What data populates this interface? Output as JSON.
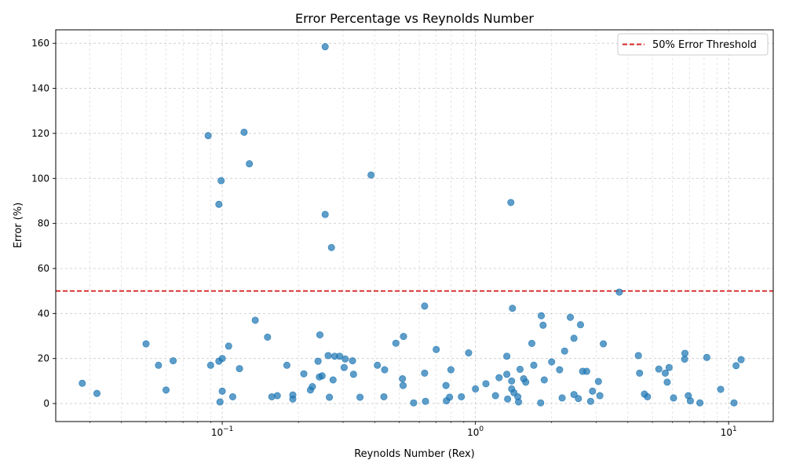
{
  "chart_data": {
    "type": "scatter",
    "title": "Error Percentage vs Reynolds Number",
    "xlabel": "Reynolds Number (Rex)",
    "ylabel": "Error (%)",
    "xscale": "log",
    "xlim": [
      0.022,
      15
    ],
    "ylim": [
      -8,
      166
    ],
    "x_ticks": [
      {
        "value": 0.1,
        "base": "10",
        "exp": "−1"
      },
      {
        "value": 1,
        "base": "10",
        "exp": "0"
      },
      {
        "value": 10,
        "base": "10",
        "exp": "1"
      }
    ],
    "y_ticks": [
      0,
      20,
      40,
      60,
      80,
      100,
      120,
      140,
      160
    ],
    "grid": true,
    "legend_position": "upper-right",
    "threshold": {
      "label": "50% Error Threshold",
      "value": 50,
      "color": "#d62728",
      "style": "dashed"
    },
    "marker_color": "#1f77b4",
    "points": [
      [
        0.028,
        9
      ],
      [
        0.032,
        4.5
      ],
      [
        0.05,
        26.5
      ],
      [
        0.056,
        17
      ],
      [
        0.06,
        6
      ],
      [
        0.064,
        19
      ],
      [
        0.088,
        119
      ],
      [
        0.09,
        17
      ],
      [
        0.097,
        88.5
      ],
      [
        0.097,
        18.8
      ],
      [
        0.098,
        0.7
      ],
      [
        0.099,
        99
      ],
      [
        0.1,
        20
      ],
      [
        0.1,
        5.5
      ],
      [
        0.106,
        25.5
      ],
      [
        0.11,
        3
      ],
      [
        0.117,
        15.5
      ],
      [
        0.122,
        120.5
      ],
      [
        0.128,
        106.5
      ],
      [
        0.135,
        37
      ],
      [
        0.151,
        29.5
      ],
      [
        0.157,
        3
      ],
      [
        0.165,
        3.5
      ],
      [
        0.18,
        17
      ],
      [
        0.19,
        2
      ],
      [
        0.19,
        3.8
      ],
      [
        0.21,
        13.2
      ],
      [
        0.223,
        6
      ],
      [
        0.227,
        7.5
      ],
      [
        0.239,
        18.8
      ],
      [
        0.242,
        11.8
      ],
      [
        0.243,
        30.5
      ],
      [
        0.248,
        12.3
      ],
      [
        0.255,
        84
      ],
      [
        0.255,
        158.5
      ],
      [
        0.262,
        21.3
      ],
      [
        0.265,
        2.8
      ],
      [
        0.27,
        69.3
      ],
      [
        0.274,
        10.5
      ],
      [
        0.278,
        21
      ],
      [
        0.291,
        21
      ],
      [
        0.303,
        16
      ],
      [
        0.306,
        19.8
      ],
      [
        0.327,
        19
      ],
      [
        0.33,
        13
      ],
      [
        0.35,
        2.8
      ],
      [
        0.387,
        101.5
      ],
      [
        0.41,
        17
      ],
      [
        0.435,
        3
      ],
      [
        0.438,
        15
      ],
      [
        0.485,
        26.8
      ],
      [
        0.515,
        11
      ],
      [
        0.518,
        8
      ],
      [
        0.52,
        29.8
      ],
      [
        0.57,
        0.3
      ],
      [
        0.63,
        43.3
      ],
      [
        0.63,
        13.5
      ],
      [
        0.635,
        1
      ],
      [
        0.7,
        24
      ],
      [
        0.765,
        8
      ],
      [
        0.768,
        1.2
      ],
      [
        0.79,
        2.8
      ],
      [
        0.8,
        15
      ],
      [
        0.88,
        3
      ],
      [
        0.94,
        22.5
      ],
      [
        1.0,
        6.5
      ],
      [
        1.1,
        8.8
      ],
      [
        1.2,
        3.5
      ],
      [
        1.24,
        11.5
      ],
      [
        1.33,
        21
      ],
      [
        1.33,
        13
      ],
      [
        1.34,
        2
      ],
      [
        1.38,
        89.3
      ],
      [
        1.39,
        10
      ],
      [
        1.39,
        6.5
      ],
      [
        1.4,
        42.3
      ],
      [
        1.42,
        4.8
      ],
      [
        1.47,
        3
      ],
      [
        1.48,
        0.7
      ],
      [
        1.5,
        15.2
      ],
      [
        1.55,
        11
      ],
      [
        1.58,
        9.5
      ],
      [
        1.67,
        26.7
      ],
      [
        1.7,
        17
      ],
      [
        1.81,
        0.3
      ],
      [
        1.82,
        39
      ],
      [
        1.85,
        34.8
      ],
      [
        1.87,
        10.5
      ],
      [
        2.0,
        18.5
      ],
      [
        2.15,
        15
      ],
      [
        2.2,
        2.5
      ],
      [
        2.25,
        23.3
      ],
      [
        2.37,
        38.3
      ],
      [
        2.45,
        29
      ],
      [
        2.45,
        4
      ],
      [
        2.55,
        2.2
      ],
      [
        2.6,
        35
      ],
      [
        2.65,
        14.3
      ],
      [
        2.75,
        14.3
      ],
      [
        2.85,
        1
      ],
      [
        2.9,
        5.5
      ],
      [
        3.06,
        9.8
      ],
      [
        3.1,
        3.5
      ],
      [
        3.2,
        26.5
      ],
      [
        3.7,
        49.5
      ],
      [
        4.4,
        21.3
      ],
      [
        4.45,
        13.5
      ],
      [
        4.65,
        4.2
      ],
      [
        4.78,
        3
      ],
      [
        5.3,
        15.3
      ],
      [
        5.62,
        13.5
      ],
      [
        5.72,
        9.5
      ],
      [
        5.82,
        16
      ],
      [
        6.06,
        2.5
      ],
      [
        6.7,
        19.7
      ],
      [
        6.72,
        22.3
      ],
      [
        6.93,
        3.5
      ],
      [
        7.06,
        1.2
      ],
      [
        7.7,
        0.3
      ],
      [
        8.2,
        20.5
      ],
      [
        9.3,
        6.3
      ],
      [
        10.5,
        0.3
      ],
      [
        10.7,
        16.8
      ],
      [
        11.2,
        19.5
      ]
    ]
  }
}
